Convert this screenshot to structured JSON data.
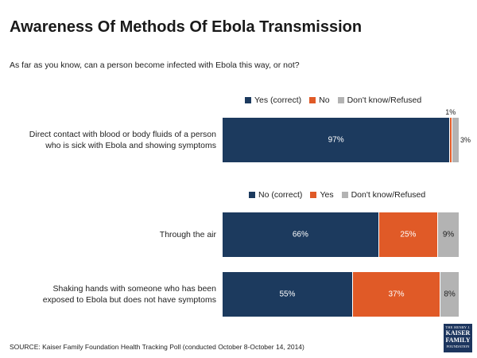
{
  "title": "Awareness Of Methods Of Ebola Transmission",
  "subtitle": "As far as you know, can a person become infected with Ebola this way, or not?",
  "source": "SOURCE: Kaiser Family Foundation Health Tracking Poll (conducted October 8-October 14, 2014)",
  "logo": {
    "line1": "THE HENRY J.",
    "line2": "KAISER",
    "line3": "FAMILY",
    "line4": "FOUNDATION"
  },
  "colors": {
    "navy": "#1c3a5e",
    "orange": "#e05a27",
    "gray": "#b3b3b3"
  },
  "chart_data": [
    {
      "type": "bar",
      "orientation": "horizontal-stacked",
      "legend": [
        "Yes (correct)",
        "No",
        "Don't know/Refused"
      ],
      "categories": [
        "Direct contact with blood or body fluids of a person who is sick with Ebola and showing symptoms"
      ],
      "category_lines": [
        [
          "Direct contact with blood or body fluids of a person",
          "who is sick with Ebola and showing symptoms"
        ]
      ],
      "series": [
        {
          "name": "Yes (correct)",
          "values": [
            97
          ],
          "labels": [
            "97%"
          ]
        },
        {
          "name": "No",
          "values": [
            1
          ],
          "labels": [
            "1%"
          ]
        },
        {
          "name": "Don't know/Refused",
          "values": [
            3
          ],
          "labels": [
            "3%"
          ]
        }
      ]
    },
    {
      "type": "bar",
      "orientation": "horizontal-stacked",
      "legend": [
        "No (correct)",
        "Yes",
        "Don't know/Refused"
      ],
      "categories": [
        "Through the air",
        "Shaking hands with someone who has been exposed to Ebola but does not have symptoms"
      ],
      "category_lines": [
        [
          "Through the air"
        ],
        [
          "Shaking hands with someone who has been",
          "exposed to Ebola but does not have symptoms"
        ]
      ],
      "series": [
        {
          "name": "No (correct)",
          "values": [
            66,
            55
          ],
          "labels": [
            "66%",
            "55%"
          ]
        },
        {
          "name": "Yes",
          "values": [
            25,
            37
          ],
          "labels": [
            "25%",
            "37%"
          ]
        },
        {
          "name": "Don't know/Refused",
          "values": [
            9,
            8
          ],
          "labels": [
            "9%",
            "8%"
          ]
        }
      ]
    }
  ]
}
